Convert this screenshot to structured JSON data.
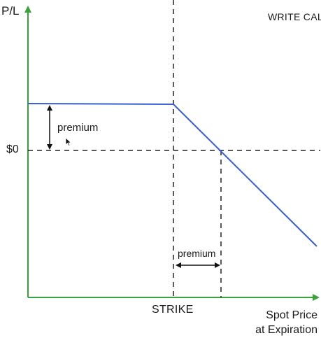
{
  "diagram": {
    "title": "WRITE CALL",
    "y_axis_label": "P/L",
    "zero_label": "$0",
    "x_axis_label_line1": "Spot Price",
    "x_axis_label_line2": "at Expiration",
    "strike_label": "STRIKE",
    "premium_label_vertical": "premium",
    "premium_label_horizontal": "premium",
    "colors": {
      "axis": "#3aa23a",
      "payoff_line": "#3a5fcd",
      "guides": "#222222",
      "text": "#1a1a1a"
    }
  }
}
